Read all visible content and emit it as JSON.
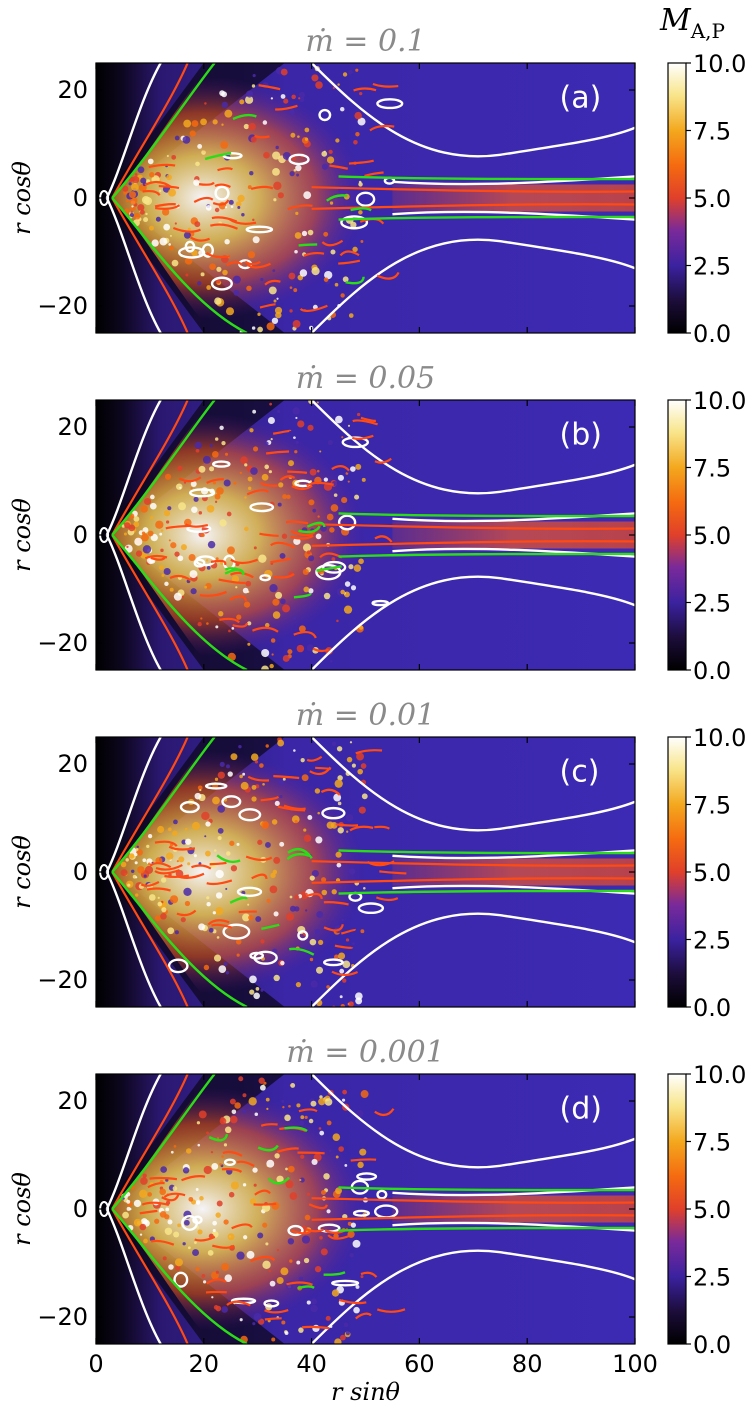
{
  "figure": {
    "colorbar_title": "M",
    "colorbar_title_sub": "A,P",
    "xlabel": "r sinθ",
    "ylabel": "r cosθ"
  },
  "chart_data": [
    {
      "type": "heatmap",
      "panel_label": "(a)",
      "title": "ṁ = 0.1",
      "xlabel": "",
      "ylabel": "r cosθ",
      "xlim": [
        0,
        100
      ],
      "ylim": [
        -25,
        25
      ],
      "xticks": [
        0,
        20,
        40,
        60,
        80,
        100
      ],
      "xtick_labels_shown": false,
      "yticks": [
        -20,
        0,
        20
      ],
      "ytick_labels": [
        "−20",
        "0",
        "20"
      ],
      "colorbar": {
        "min": 0.0,
        "max": 10.0,
        "ticks": [
          "0.0",
          "2.5",
          "5.0",
          "7.5",
          "10.0"
        ]
      },
      "contours": [
        "white",
        "orange-red",
        "green"
      ]
    },
    {
      "type": "heatmap",
      "panel_label": "(b)",
      "title": "ṁ = 0.05",
      "xlabel": "",
      "ylabel": "r cosθ",
      "xlim": [
        0,
        100
      ],
      "ylim": [
        -25,
        25
      ],
      "xticks": [
        0,
        20,
        40,
        60,
        80,
        100
      ],
      "xtick_labels_shown": false,
      "yticks": [
        -20,
        0,
        20
      ],
      "ytick_labels": [
        "−20",
        "0",
        "20"
      ],
      "colorbar": {
        "min": 0.0,
        "max": 10.0,
        "ticks": [
          "0.0",
          "2.5",
          "5.0",
          "7.5",
          "10.0"
        ]
      },
      "contours": [
        "white",
        "orange-red",
        "green"
      ]
    },
    {
      "type": "heatmap",
      "panel_label": "(c)",
      "title": "ṁ = 0.01",
      "xlabel": "",
      "ylabel": "r cosθ",
      "xlim": [
        0,
        100
      ],
      "ylim": [
        -25,
        25
      ],
      "xticks": [
        0,
        20,
        40,
        60,
        80,
        100
      ],
      "xtick_labels_shown": false,
      "yticks": [
        -20,
        0,
        20
      ],
      "ytick_labels": [
        "−20",
        "0",
        "20"
      ],
      "colorbar": {
        "min": 0.0,
        "max": 10.0,
        "ticks": [
          "0.0",
          "2.5",
          "5.0",
          "7.5",
          "10.0"
        ]
      },
      "contours": [
        "white",
        "orange-red",
        "green"
      ]
    },
    {
      "type": "heatmap",
      "panel_label": "(d)",
      "title": "ṁ = 0.001",
      "xlabel": "r sinθ",
      "ylabel": "r cosθ",
      "xlim": [
        0,
        100
      ],
      "ylim": [
        -25,
        25
      ],
      "xticks": [
        0,
        20,
        40,
        60,
        80,
        100
      ],
      "xtick_labels": [
        "0",
        "20",
        "40",
        "60",
        "80",
        "100"
      ],
      "xtick_labels_shown": true,
      "yticks": [
        -20,
        0,
        20
      ],
      "ytick_labels": [
        "−20",
        "0",
        "20"
      ],
      "colorbar": {
        "min": 0.0,
        "max": 10.0,
        "ticks": [
          "0.0",
          "2.5",
          "5.0",
          "7.5",
          "10.0"
        ]
      },
      "contours": [
        "white",
        "orange-red",
        "green"
      ]
    }
  ],
  "colors": {
    "cmap": [
      "#000000",
      "#1a0a2e",
      "#3a1f8a",
      "#5a2a9e",
      "#c0306a",
      "#f05a1a",
      "#f3a020",
      "#f8e070",
      "#ffffff"
    ],
    "contour_white": "#ffffff",
    "contour_red": "#ff4a14",
    "contour_green": "#2bdc18"
  }
}
